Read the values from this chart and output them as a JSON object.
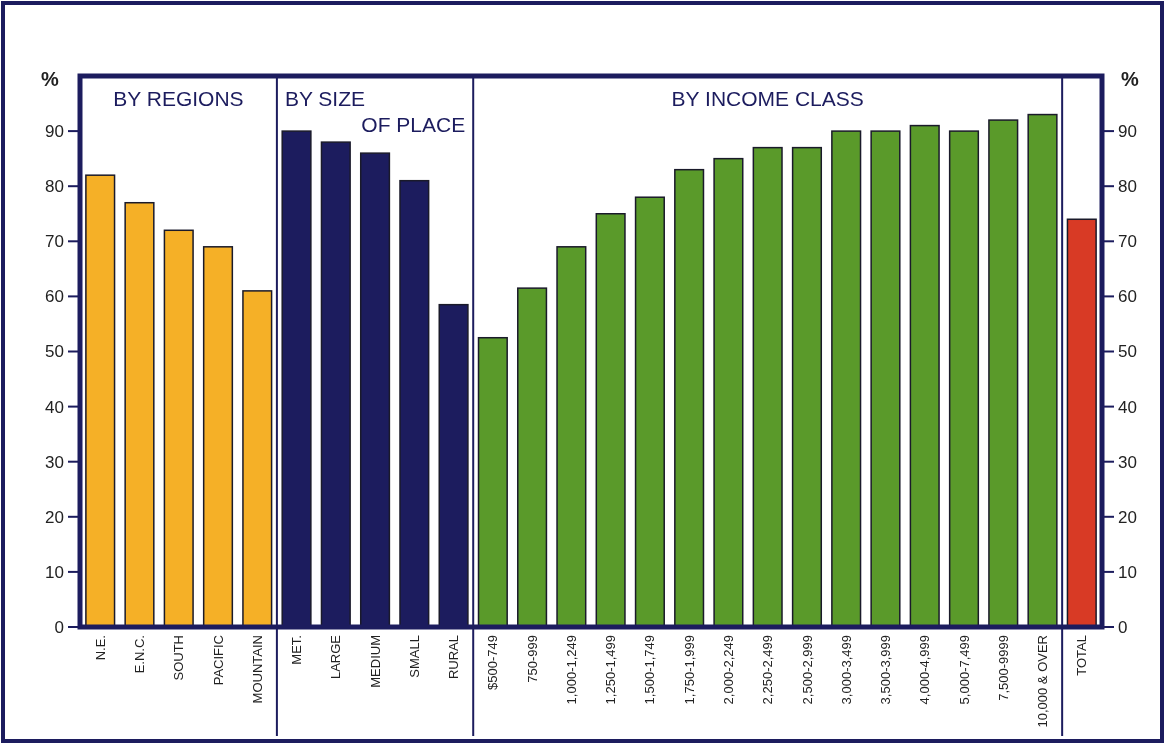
{
  "chart_data": {
    "type": "bar",
    "categories": [
      "N.E.",
      "E.N.C.",
      "SOUTH",
      "PACIFIC",
      "MOUNTAIN",
      "MET.",
      "LARGE",
      "MEDIUM",
      "SMALL",
      "RURAL",
      "$500-749",
      "750-999",
      "1,000-1,249",
      "1,250-1,499",
      "1,500-1,749",
      "1,750-1,999",
      "2,000-2,249",
      "2,250-2,499",
      "2,500-2,999",
      "3,000-3,499",
      "3,500-3,999",
      "4,000-4,999",
      "5,000-7,499",
      "7,500-9999",
      "10,000 & OVER",
      "TOTAL"
    ],
    "values": [
      82,
      77,
      72,
      69,
      61,
      90,
      88,
      86,
      81,
      58.5,
      52.5,
      61.5,
      69,
      75,
      78,
      83,
      85,
      87,
      87,
      90,
      90,
      91,
      90,
      92,
      93,
      74
    ],
    "colors": [
      "#f5b027",
      "#f5b027",
      "#f5b027",
      "#f5b027",
      "#f5b027",
      "#1c1c5e",
      "#1c1c5e",
      "#1c1c5e",
      "#1c1c5e",
      "#1c1c5e",
      "#5a9a2a",
      "#5a9a2a",
      "#5a9a2a",
      "#5a9a2a",
      "#5a9a2a",
      "#5a9a2a",
      "#5a9a2a",
      "#5a9a2a",
      "#5a9a2a",
      "#5a9a2a",
      "#5a9a2a",
      "#5a9a2a",
      "#5a9a2a",
      "#5a9a2a",
      "#5a9a2a",
      "#d83a25"
    ],
    "ylabel": "%",
    "y2label": "%",
    "ylim": [
      0,
      100
    ],
    "yticks": [
      0,
      10,
      20,
      30,
      40,
      50,
      60,
      70,
      80,
      90
    ],
    "y2lim": [
      0,
      100
    ],
    "y2ticks": [
      0,
      10,
      20,
      30,
      40,
      50,
      60,
      70,
      80,
      90
    ],
    "annotations": [
      "BY REGIONS",
      "BY SIZE\nOF PLACE",
      "BY INCOME CLASS"
    ]
  }
}
